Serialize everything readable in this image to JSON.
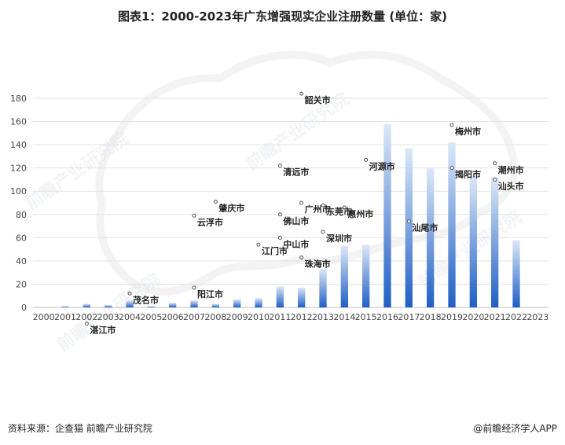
{
  "title": "图表1：2000-2023年广东增强现实企业注册数量 (单位：家)",
  "footer": {
    "source": "资料来源：企查猫 前瞻产业研究院",
    "brand": "@前瞻经济学人APP"
  },
  "watermark": {
    "text": "前瞻产业研究院"
  },
  "colors": {
    "bar_top": "#dce8f8",
    "bar_bottom": "#1f5fc4",
    "grid": "#e3e3e3",
    "axis": "#bfbfbf",
    "map_outline": "#dcdcdc"
  },
  "chart_data": {
    "type": "bar",
    "title": "图表1：2000-2023年广东增强现实企业注册数量 (单位：家)",
    "xlabel": "",
    "ylabel": "",
    "ylim": [
      0,
      180
    ],
    "yticks": [
      "0",
      "20",
      "40",
      "60",
      "80",
      "100",
      "120",
      "140",
      "160",
      "180"
    ],
    "grid": true,
    "categories": [
      "2000",
      "2001",
      "2002",
      "2003",
      "2004",
      "2005",
      "2006",
      "2007",
      "2008",
      "2009",
      "2010",
      "2011",
      "2012",
      "2013",
      "2014",
      "2015",
      "2016",
      "2017",
      "2018",
      "2019",
      "2020",
      "2021",
      "2022",
      "2023"
    ],
    "values": [
      0,
      1,
      3,
      2,
      6,
      1,
      4,
      6,
      3,
      7,
      8,
      18,
      17,
      33,
      53,
      54,
      158,
      137,
      120,
      142,
      113,
      112,
      58,
      0
    ],
    "annotations": [
      {
        "text": "韶关市",
        "x": "2012",
        "y": 184
      },
      {
        "text": "梅州市",
        "x": "2019",
        "y": 157
      },
      {
        "text": "清远市",
        "x": "2011",
        "y": 122
      },
      {
        "text": "河源市",
        "x": "2015",
        "y": 127
      },
      {
        "text": "潮州市",
        "x": "2021",
        "y": 124
      },
      {
        "text": "揭阳市",
        "x": "2019",
        "y": 120
      },
      {
        "text": "肇庆市",
        "x": "2008",
        "y": 91
      },
      {
        "text": "广州市",
        "x": "2012",
        "y": 90
      },
      {
        "text": "惠州市",
        "x": "2014",
        "y": 86
      },
      {
        "text": "汕头市",
        "x": "2021",
        "y": 110
      },
      {
        "text": "云浮市",
        "x": "2007",
        "y": 79
      },
      {
        "text": "佛山市",
        "x": "2011",
        "y": 80
      },
      {
        "text": "东莞市",
        "x": "2013",
        "y": 88
      },
      {
        "text": "汕尾市",
        "x": "2017",
        "y": 74
      },
      {
        "text": "中山市",
        "x": "2011",
        "y": 60
      },
      {
        "text": "深圳市",
        "x": "2013",
        "y": 65
      },
      {
        "text": "江门市",
        "x": "2010",
        "y": 54
      },
      {
        "text": "珠海市",
        "x": "2012",
        "y": 43
      },
      {
        "text": "阳江市",
        "x": "2007",
        "y": 17
      },
      {
        "text": "茂名市",
        "x": "2004",
        "y": 12
      },
      {
        "text": "湛江市",
        "x": "2002",
        "y": -14
      }
    ]
  }
}
